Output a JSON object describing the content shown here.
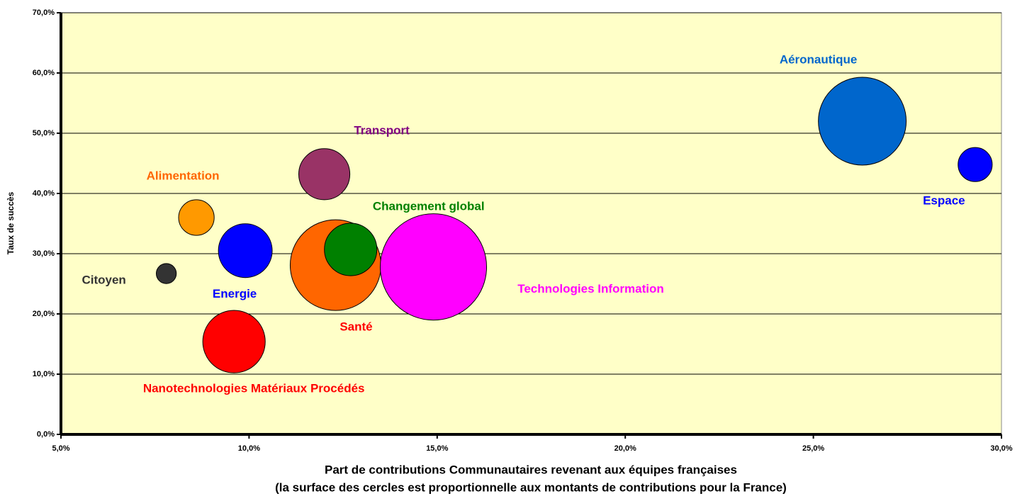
{
  "chart_data": {
    "type": "bubble",
    "xlabel": "Part de contributions Communautaires revenant aux équipes françaises",
    "xlabel_note": "(la surface des cercles est proportionnelle aux montants de contributions pour la France)",
    "ylabel": "Taux de succès",
    "xlim": [
      5,
      30
    ],
    "xticks": [
      {
        "value": 5,
        "label": "5,0%"
      },
      {
        "value": 10,
        "label": "10,0%"
      },
      {
        "value": 15,
        "label": "15,0%"
      },
      {
        "value": 20,
        "label": "20,0%"
      },
      {
        "value": 25,
        "label": "25,0%"
      },
      {
        "value": 30,
        "label": "30,0%"
      }
    ],
    "ylim": [
      0,
      70
    ],
    "yticks": [
      {
        "value": 0,
        "label": "0,0%"
      },
      {
        "value": 10,
        "label": "10,0%"
      },
      {
        "value": 20,
        "label": "20,0%"
      },
      {
        "value": 30,
        "label": "30,0%"
      },
      {
        "value": 40,
        "label": "40,0%"
      },
      {
        "value": 50,
        "label": "50,0%"
      },
      {
        "value": 60,
        "label": "60,0%"
      },
      {
        "value": 70,
        "label": "70,0%"
      }
    ],
    "grid": true,
    "points": [
      {
        "name": "Aéronautique",
        "x": 26.3,
        "y": 52.0,
        "size": 38.4,
        "color": "#0066cc",
        "label_color": "#0066cc"
      },
      {
        "name": "Espace",
        "x": 29.3,
        "y": 44.8,
        "size": 5.8,
        "color": "#0000ff",
        "label_color": "#0000ff"
      },
      {
        "name": "Transport",
        "x": 12.0,
        "y": 43.2,
        "size": 13.0,
        "color": "#993366",
        "label_color": "#800080"
      },
      {
        "name": "Alimentation",
        "x": 8.6,
        "y": 36.0,
        "size": 6.3,
        "color": "#ff9900",
        "label_color": "#ff6600"
      },
      {
        "name": "Energie",
        "x": 9.9,
        "y": 30.5,
        "size": 14.4,
        "color": "#0000ff",
        "label_color": "#0000ff"
      },
      {
        "name": "Citoyen",
        "x": 7.8,
        "y": 26.7,
        "size": 2.0,
        "color": "#333333",
        "label_color": "#333333"
      },
      {
        "name": "Santé",
        "x": 12.3,
        "y": 28.1,
        "size": 41.0,
        "color": "#ff6600",
        "label_color": "#ff0000"
      },
      {
        "name": "Changement global",
        "x": 12.7,
        "y": 30.7,
        "size": 13.7,
        "color": "#008000",
        "label_color": "#008000"
      },
      {
        "name": "Technologies Information",
        "x": 14.9,
        "y": 27.8,
        "size": 56.3,
        "color": "#ff00ff",
        "label_color": "#ff00ff"
      },
      {
        "name": "Nanotechnologies Matériaux Procédés",
        "x": 9.6,
        "y": 15.4,
        "size": 19.4,
        "color": "#ff0000",
        "label_color": "#ff0000"
      }
    ]
  }
}
